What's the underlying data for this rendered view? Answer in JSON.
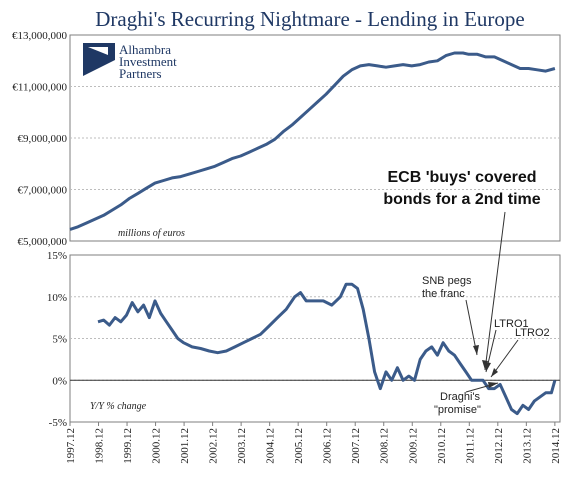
{
  "chart_data": [
    {
      "type": "line",
      "title": "Draghi's Recurring Nightmare - Lending in Europe",
      "ylabel_note": "millions of euros",
      "ylim": [
        5000000,
        13000000
      ],
      "yticks": [
        {
          "v": 5000000,
          "l": "€5,000,000"
        },
        {
          "v": 7000000,
          "l": "€7,000,000"
        },
        {
          "v": 9000000,
          "l": "€9,000,000"
        },
        {
          "v": 11000000,
          "l": "€11,000,000"
        },
        {
          "v": 13000000,
          "l": "€13,000,000"
        }
      ],
      "xlim": [
        1997.92,
        2015.1
      ],
      "grid": true,
      "series": [
        {
          "x": [
            1997.92,
            1998.2,
            1998.5,
            1998.8,
            1999.1,
            1999.4,
            1999.7,
            2000.0,
            2000.3,
            2000.6,
            2000.9,
            2001.2,
            2001.5,
            2001.8,
            2002.1,
            2002.4,
            2002.7,
            2003.0,
            2003.3,
            2003.6,
            2003.9,
            2004.2,
            2004.5,
            2004.8,
            2005.1,
            2005.4,
            2005.7,
            2006.0,
            2006.3,
            2006.6,
            2006.9,
            2007.2,
            2007.5,
            2007.8,
            2008.1,
            2008.4,
            2008.7,
            2009.0,
            2009.3,
            2009.6,
            2009.9,
            2010.2,
            2010.5,
            2010.8,
            2011.1,
            2011.4,
            2011.7,
            2011.9,
            2012.2,
            2012.5,
            2012.8,
            2013.1,
            2013.4,
            2013.7,
            2014.0,
            2014.3,
            2014.6,
            2014.92
          ],
          "values": [
            5450000,
            5550000,
            5700000,
            5850000,
            6000000,
            6200000,
            6400000,
            6650000,
            6850000,
            7050000,
            7250000,
            7350000,
            7450000,
            7500000,
            7600000,
            7700000,
            7800000,
            7900000,
            8050000,
            8200000,
            8300000,
            8450000,
            8600000,
            8750000,
            8950000,
            9250000,
            9500000,
            9800000,
            10100000,
            10400000,
            10700000,
            11050000,
            11400000,
            11650000,
            11800000,
            11850000,
            11800000,
            11750000,
            11800000,
            11850000,
            11800000,
            11850000,
            11950000,
            12000000,
            12200000,
            12300000,
            12300000,
            12250000,
            12250000,
            12150000,
            12150000,
            12000000,
            11850000,
            11700000,
            11700000,
            11650000,
            11600000,
            11700000
          ]
        }
      ]
    },
    {
      "type": "line",
      "ylabel_note": "Y/Y % change",
      "ylim": [
        -5,
        15
      ],
      "yticks": [
        {
          "v": -5,
          "l": "-5%"
        },
        {
          "v": 0,
          "l": "0%"
        },
        {
          "v": 5,
          "l": "5%"
        },
        {
          "v": 10,
          "l": "10%"
        },
        {
          "v": 15,
          "l": "15%"
        }
      ],
      "xlim": [
        1997.92,
        2015.1
      ],
      "xticks": [
        "1997.12",
        "1998.12",
        "1999.12",
        "2000.12",
        "2001.12",
        "2002.12",
        "2003.12",
        "2004.12",
        "2005.12",
        "2006.12",
        "2007.12",
        "2008.12",
        "2009.12",
        "2010.12",
        "2011.12",
        "2012.12",
        "2013.12",
        "2014.12"
      ],
      "grid": true,
      "series": [
        {
          "x": [
            1998.9,
            1999.1,
            1999.3,
            1999.5,
            1999.7,
            1999.9,
            2000.1,
            2000.3,
            2000.5,
            2000.7,
            2000.9,
            2001.1,
            2001.3,
            2001.5,
            2001.7,
            2001.9,
            2002.2,
            2002.5,
            2002.8,
            2003.1,
            2003.4,
            2003.7,
            2004.0,
            2004.3,
            2004.6,
            2004.9,
            2005.2,
            2005.5,
            2005.8,
            2006.0,
            2006.2,
            2006.5,
            2006.8,
            2007.1,
            2007.4,
            2007.6,
            2007.8,
            2008.0,
            2008.2,
            2008.4,
            2008.6,
            2008.8,
            2009.0,
            2009.2,
            2009.4,
            2009.6,
            2009.8,
            2010.0,
            2010.2,
            2010.4,
            2010.6,
            2010.8,
            2011.0,
            2011.2,
            2011.4,
            2011.6,
            2011.8,
            2012.0,
            2012.2,
            2012.4,
            2012.6,
            2012.8,
            2013.0,
            2013.2,
            2013.4,
            2013.6,
            2013.8,
            2014.0,
            2014.2,
            2014.4,
            2014.6,
            2014.8,
            2014.92
          ],
          "values": [
            7.0,
            7.2,
            6.6,
            7.5,
            7.0,
            7.8,
            9.3,
            8.2,
            9.0,
            7.5,
            9.5,
            8.0,
            7.0,
            6.0,
            5.0,
            4.5,
            4.0,
            3.8,
            3.5,
            3.3,
            3.5,
            4.0,
            4.5,
            5.0,
            5.5,
            6.5,
            7.5,
            8.5,
            10.0,
            10.5,
            9.5,
            9.5,
            9.5,
            9.0,
            10.0,
            11.5,
            11.5,
            11.0,
            8.5,
            5.0,
            1.0,
            -1.0,
            1.0,
            0.0,
            1.5,
            0.0,
            0.5,
            0.0,
            2.5,
            3.5,
            4.0,
            3.0,
            4.5,
            3.5,
            3.0,
            2.0,
            1.0,
            0.0,
            0.0,
            0.0,
            -1.0,
            -1.0,
            -0.5,
            -2.0,
            -3.5,
            -4.0,
            -3.0,
            -3.5,
            -2.5,
            -2.0,
            -1.5,
            -1.5,
            0.0
          ]
        }
      ]
    }
  ],
  "logo": {
    "line1": "Alhambra",
    "line2": "Investment",
    "line3": "Partners"
  },
  "annotations": {
    "ecb_line1": "ECB 'buys' covered",
    "ecb_line2": "bonds for a 2nd time",
    "snb_line1": "SNB pegs",
    "snb_line2": "the franc",
    "ltro1": "LTRO1",
    "ltro2": "LTRO2",
    "draghi_line1": "Draghi's",
    "draghi_line2": "\"promise\""
  },
  "colors": {
    "line": "#3b5b8a",
    "title": "#1f3864"
  }
}
